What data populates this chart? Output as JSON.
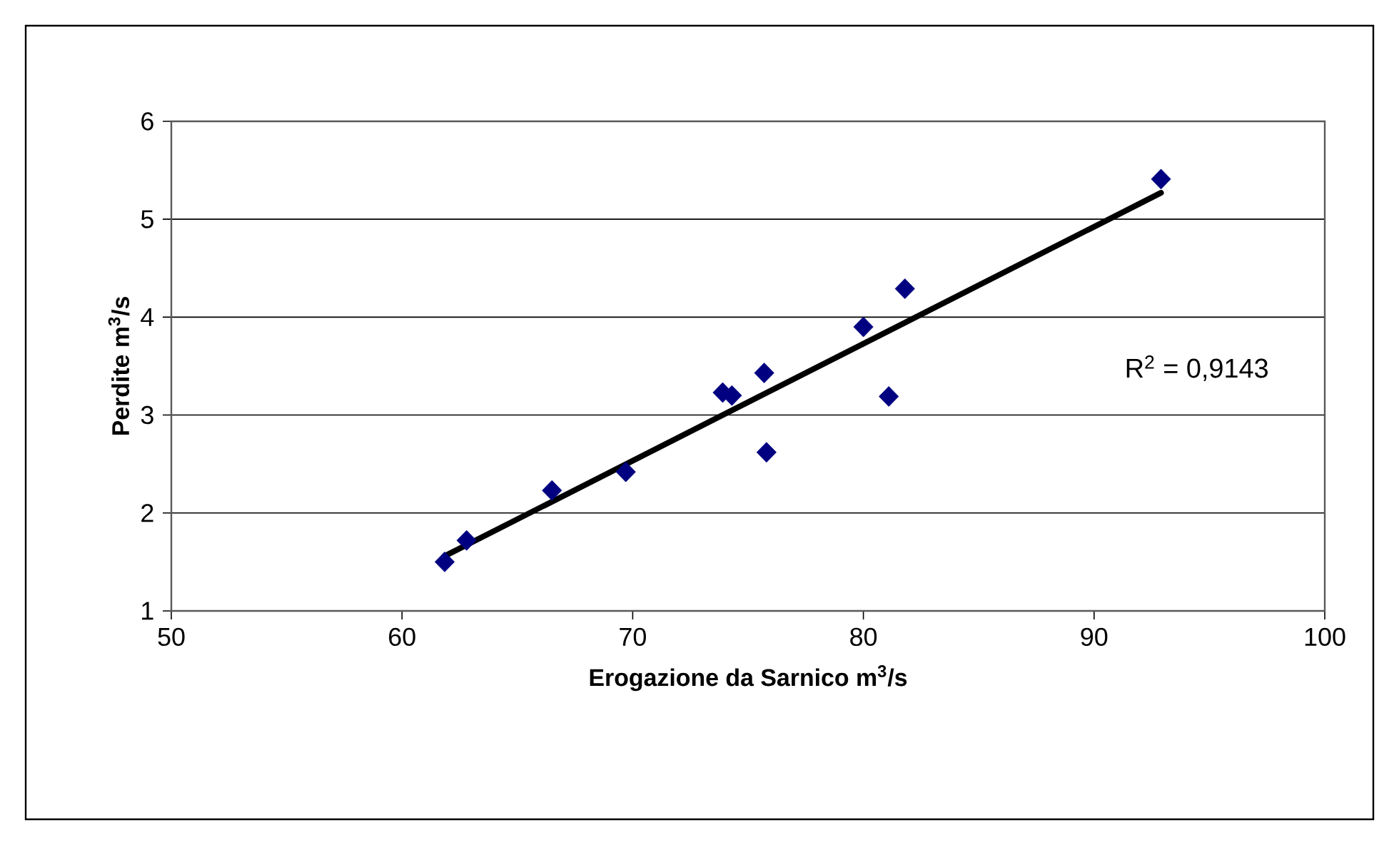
{
  "chart_data": {
    "type": "scatter",
    "xlabel": "Erogazione da Sarnico m$^{3}$/s",
    "ylabel": "Perdite m$^{3}$/s",
    "xlim": [
      50,
      100
    ],
    "xticks": [
      50,
      60,
      70,
      80,
      90,
      100
    ],
    "ylim": [
      1,
      6
    ],
    "yticks": [
      1,
      2,
      3,
      4,
      5,
      6
    ],
    "grid": "y",
    "annotations": [
      "R$^{2}$ = 0,9143"
    ],
    "series": [
      {
        "marker": "diamond",
        "color": "#000080",
        "x": [
          61.85,
          62.8,
          66.5,
          69.7,
          73.9,
          74.3,
          75.7,
          75.8,
          80.0,
          81.8,
          81.1,
          92.9
        ],
        "values": [
          1.5,
          1.72,
          2.23,
          2.42,
          3.23,
          3.2,
          3.43,
          2.62,
          3.9,
          4.29,
          3.19,
          5.41
        ]
      },
      {
        "type": "line",
        "color": "#000000",
        "x": [
          61.85,
          92.9
        ],
        "values": [
          1.56,
          5.27
        ]
      }
    ]
  }
}
